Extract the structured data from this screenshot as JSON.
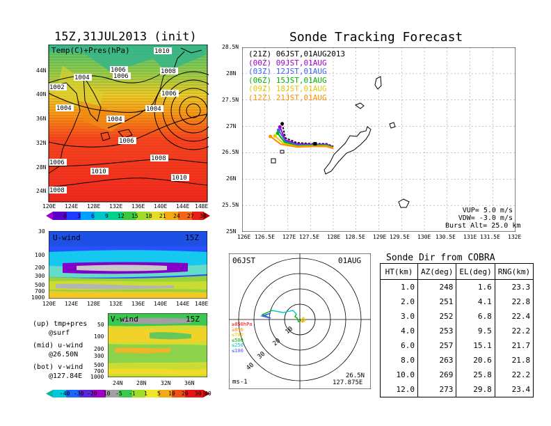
{
  "map_panel": {
    "title": "15Z,31JUL2013 (init)",
    "label": "Temp(C)+Pres(hPa)",
    "lat_labels": [
      "44N",
      "40N",
      "36N",
      "32N",
      "28N",
      "24N"
    ],
    "lon_labels": [
      "120E",
      "124E",
      "128E",
      "132E",
      "136E",
      "140E",
      "144E",
      "148E"
    ],
    "isobar_labels": [
      "1010",
      "1006",
      "1006",
      "1008",
      "1004",
      "1002",
      "1004",
      "1006",
      "1004",
      "1004",
      "1006",
      "1008",
      "1006",
      "1010",
      "1010",
      "1008"
    ],
    "colorbar_ticks": [
      "0",
      "3",
      "6",
      "9",
      "12",
      "15",
      "18",
      "21",
      "24",
      "27",
      "30"
    ]
  },
  "uwind_panel": {
    "label": "U-wind",
    "time": "15Z",
    "pressure_labels": [
      "30",
      "100",
      "200",
      "300",
      "500",
      "700",
      "1000"
    ],
    "lon_labels": [
      "120E",
      "124E",
      "128E",
      "132E",
      "136E",
      "140E",
      "144E",
      "148E"
    ]
  },
  "vwind_panel": {
    "label": "V-wind",
    "time": "15Z",
    "pressure_labels": [
      "50",
      "100",
      "200",
      "300",
      "500",
      "700",
      "1000"
    ],
    "lat_labels": [
      "24N",
      "28N",
      "32N",
      "36N"
    ],
    "colorbar_ticks": [
      "-40",
      "-30",
      "-20",
      "-10",
      "-5",
      "-1",
      "1",
      "5",
      "10",
      "20",
      "30",
      "40"
    ]
  },
  "legend_notes": {
    "up_line1": "(up) tmp+pres",
    "up_line2": "@surf",
    "mid_line1": "(mid) u-wind",
    "mid_line2": "@26.50N",
    "bot_line1": "(bot) v-wind",
    "bot_line2": "@127.84E"
  },
  "tracking": {
    "title": "Sonde Tracking Forecast",
    "lat_labels": [
      "28.5N",
      "28N",
      "27.5N",
      "27N",
      "26.5N",
      "26N",
      "25.5N",
      "25N"
    ],
    "lon_labels": [
      "126E",
      "126.5E",
      "127E",
      "127.5E",
      "128E",
      "128.5E",
      "129E",
      "129.5E",
      "130E",
      "130.5E",
      "131E",
      "131.5E",
      "132E"
    ],
    "legend": [
      {
        "text": "(21Z) 06JST,01AUG2013",
        "color": "#000000"
      },
      {
        "text": "(00Z) 09JST,01AUG",
        "color": "#a000c8"
      },
      {
        "text": "(03Z) 12JST,01AUG",
        "color": "#3a5fff"
      },
      {
        "text": "(06Z) 15JST,01AUG",
        "color": "#00b400"
      },
      {
        "text": "(09Z) 18JST,01AUG",
        "color": "#e6c800"
      },
      {
        "text": "(12Z) 21JST,01AUG",
        "color": "#ff8c00"
      }
    ],
    "params": {
      "vup": "VUP= 5.0 m/s",
      "vdw": "VDW= -3.0 m/s",
      "burst": "Burst Alt= 25.0 km"
    }
  },
  "polar": {
    "time_label": "06JST",
    "date_label": "01AUG",
    "ring_labels": [
      "10",
      "20",
      "30",
      "40"
    ],
    "level_legend": [
      {
        "text": "≥850hPa",
        "color": "#ff0000"
      },
      {
        "text": "≤850",
        "color": "#ff8c00"
      },
      {
        "text": "≤700",
        "color": "#e6c800"
      },
      {
        "text": "≤500",
        "color": "#00b400"
      },
      {
        "text": "≤250",
        "color": "#00c8c8"
      },
      {
        "text": "≤100",
        "color": "#3a5fff"
      }
    ],
    "unit": "ms-1",
    "location_lat": "26.5N",
    "location_lon": "127.875E"
  },
  "sonde_dir": {
    "title": "Sonde Dir from COBRA",
    "headers": [
      "HT(km)",
      "AZ(deg)",
      "EL(deg)",
      "RNG(km)"
    ],
    "rows": [
      [
        "1.0",
        "248",
        "1.6",
        "23.3"
      ],
      [
        "2.0",
        "251",
        "4.1",
        "22.8"
      ],
      [
        "3.0",
        "252",
        "6.8",
        "22.4"
      ],
      [
        "4.0",
        "253",
        "9.5",
        "22.2"
      ],
      [
        "6.0",
        "257",
        "15.1",
        "21.7"
      ],
      [
        "8.0",
        "263",
        "20.6",
        "21.8"
      ],
      [
        "10.0",
        "269",
        "25.8",
        "22.2"
      ],
      [
        "12.0",
        "273",
        "29.8",
        "23.4"
      ]
    ]
  },
  "chart_data": [
    {
      "type": "heatmap",
      "title": "15Z,31JUL2013 (init)",
      "xlabel": "",
      "ylabel": "",
      "x_range": [
        "120E",
        "148E"
      ],
      "y_range": [
        "22N",
        "47N"
      ],
      "colorbar": [
        0,
        3,
        6,
        9,
        12,
        15,
        18,
        21,
        24,
        27,
        30
      ],
      "isobars_hPa": [
        1002,
        1004,
        1006,
        1008,
        1010
      ]
    },
    {
      "type": "line",
      "title": "Sonde Tracking Forecast",
      "xlim": [
        126,
        132
      ],
      "ylim": [
        25,
        28.5
      ],
      "series": [
        {
          "name": "(21Z) 06JST,01AUG2013",
          "x": [
            126.88,
            126.95,
            127.2,
            127.55,
            127.85,
            128.0
          ],
          "y": [
            27.05,
            26.78,
            26.69,
            26.67,
            26.67,
            26.62
          ]
        },
        {
          "name": "(00Z) 09JST,01AUG",
          "x": [
            126.83,
            126.95,
            127.2,
            127.55,
            127.85,
            128.0
          ],
          "y": [
            26.99,
            26.74,
            26.67,
            26.66,
            26.66,
            26.61
          ]
        },
        {
          "name": "(03Z) 12JST,01AUG",
          "x": [
            126.8,
            126.95,
            127.2,
            127.55,
            127.85,
            128.0
          ],
          "y": [
            26.93,
            26.72,
            26.65,
            26.65,
            26.65,
            26.6
          ]
        },
        {
          "name": "(06Z) 15JST,01AUG",
          "x": [
            126.78,
            126.93,
            127.2,
            127.55,
            127.85,
            128.0
          ],
          "y": [
            26.87,
            26.7,
            26.63,
            26.64,
            26.64,
            26.6
          ]
        },
        {
          "name": "(09Z) 18JST,01AUG",
          "x": [
            126.72,
            126.9,
            127.2,
            127.55,
            127.85,
            128.0
          ],
          "y": [
            26.82,
            26.68,
            26.62,
            26.63,
            26.63,
            26.59
          ]
        },
        {
          "name": "(12Z) 21JST,01AUG",
          "x": [
            126.62,
            126.85,
            127.2,
            127.55,
            127.85,
            128.0
          ],
          "y": [
            26.81,
            26.66,
            26.61,
            26.62,
            26.62,
            26.58
          ]
        }
      ],
      "launch_point": [
        127.6,
        26.67
      ]
    },
    {
      "type": "table",
      "title": "Sonde Dir from COBRA",
      "columns": [
        "HT(km)",
        "AZ(deg)",
        "EL(deg)",
        "RNG(km)"
      ],
      "rows": [
        [
          1.0,
          248,
          1.6,
          23.3
        ],
        [
          2.0,
          251,
          4.1,
          22.8
        ],
        [
          3.0,
          252,
          6.8,
          22.4
        ],
        [
          4.0,
          253,
          9.5,
          22.2
        ],
        [
          6.0,
          257,
          15.1,
          21.7
        ],
        [
          8.0,
          263,
          20.6,
          21.8
        ],
        [
          10.0,
          269,
          25.8,
          22.2
        ],
        [
          12.0,
          273,
          29.8,
          23.4
        ]
      ]
    }
  ]
}
